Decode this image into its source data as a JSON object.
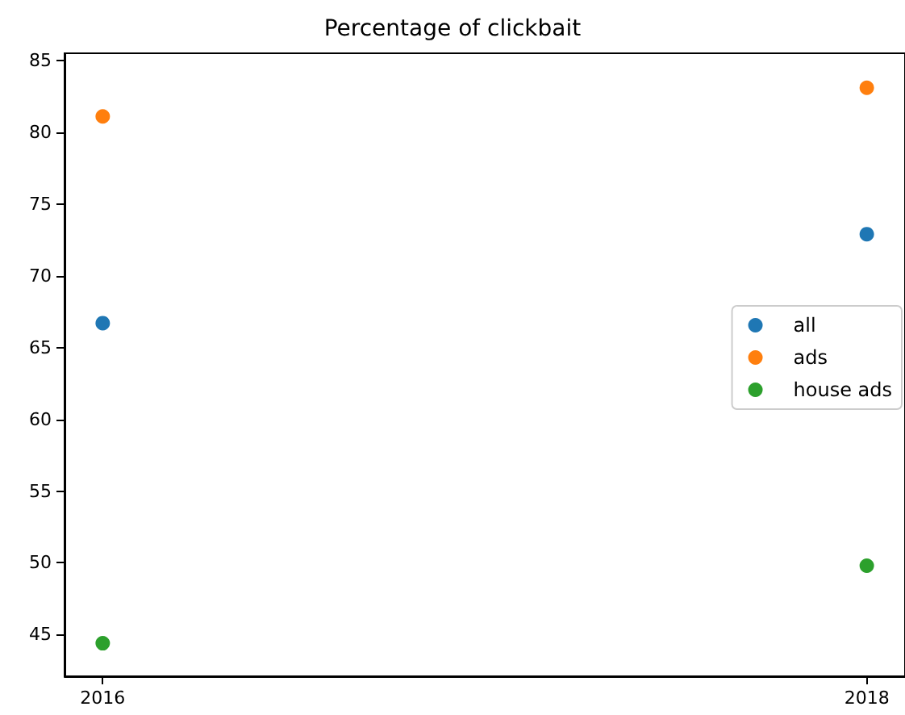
{
  "chart_data": {
    "type": "scatter",
    "title": "Percentage of clickbait",
    "x": [
      2016,
      2018
    ],
    "series": [
      {
        "name": "all",
        "color": "#1f77b4",
        "values": [
          66.7,
          72.9
        ]
      },
      {
        "name": "ads",
        "color": "#ff7f0e",
        "values": [
          81.1,
          83.1
        ]
      },
      {
        "name": "house ads",
        "color": "#2ca02c",
        "values": [
          44.4,
          49.8
        ],
        "errors": [
          0.2,
          0.3
        ]
      }
    ],
    "xlim": [
      2015.9,
      2018.1
    ],
    "xticks": [
      2016,
      2018
    ],
    "ylim": [
      42.1,
      85.5
    ],
    "yticks": [
      45,
      50,
      55,
      60,
      65,
      70,
      75,
      80,
      85
    ],
    "legend": "right",
    "marker": "circle",
    "grid": false
  }
}
